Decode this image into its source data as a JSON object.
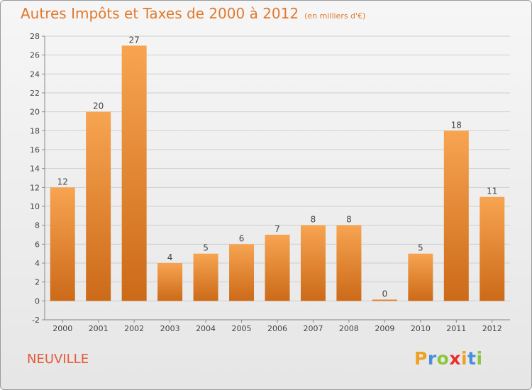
{
  "title": "Autres Impôts et Taxes de 2000 à 2012",
  "subtitle": "(en milliers d'€)",
  "commune": "NEUVILLE",
  "logo": {
    "letters": [
      "P",
      "r",
      "o",
      "x",
      "i",
      "t",
      "i"
    ],
    "colors": [
      "#f0a020",
      "#4a8fd8",
      "#8cc63f",
      "#e8312e",
      "#f0a020",
      "#4a8fd8",
      "#8cc63f"
    ]
  },
  "colors": {
    "bar_light": "#f7a451",
    "bar_dark": "#cc6a18",
    "text": "#444444",
    "grid": "#cfcfcf"
  },
  "chart_data": {
    "type": "bar",
    "title": "Autres Impôts et Taxes de 2000 à 2012",
    "subtitle": "(en milliers d'€)",
    "xlabel": "",
    "ylabel": "",
    "categories": [
      "2000",
      "2001",
      "2002",
      "2003",
      "2004",
      "2005",
      "2006",
      "2007",
      "2008",
      "2009",
      "2010",
      "2011",
      "2012"
    ],
    "values": [
      12,
      20,
      27,
      4,
      5,
      6,
      7,
      8,
      8,
      0,
      5,
      18,
      11
    ],
    "ylim": [
      -2,
      28
    ],
    "yticks": [
      -2,
      0,
      2,
      4,
      6,
      8,
      10,
      12,
      14,
      16,
      18,
      20,
      22,
      24,
      26,
      28
    ],
    "grid": true,
    "data_labels": true
  }
}
